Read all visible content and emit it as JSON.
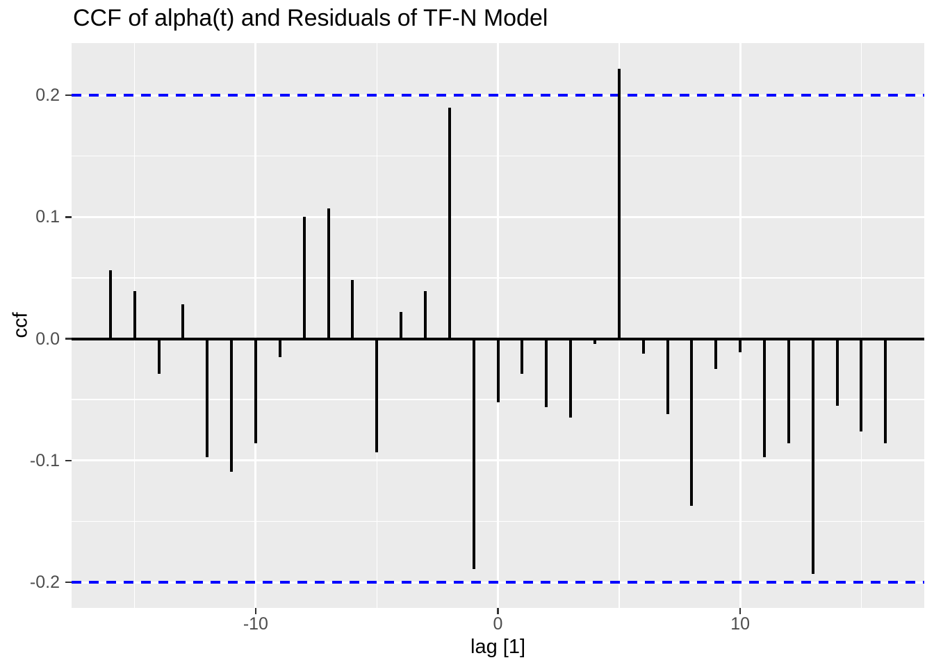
{
  "chart_data": {
    "type": "bar",
    "subtype": "lollipop-ccf",
    "title": "CCF of alpha(t) and Residuals of TF-N Model",
    "xlabel": "lag [1]",
    "ylabel": "ccf",
    "x": [
      -16,
      -15,
      -14,
      -13,
      -12,
      -11,
      -10,
      -9,
      -8,
      -7,
      -6,
      -5,
      -4,
      -3,
      -2,
      -1,
      0,
      1,
      2,
      3,
      4,
      5,
      6,
      7,
      8,
      9,
      10,
      11,
      12,
      13,
      14,
      15,
      16
    ],
    "values": [
      0.056,
      0.039,
      -0.029,
      0.028,
      -0.097,
      -0.109,
      -0.086,
      -0.015,
      0.1,
      0.107,
      0.048,
      -0.093,
      0.022,
      0.039,
      0.19,
      -0.189,
      -0.052,
      -0.029,
      -0.056,
      -0.065,
      -0.004,
      0.222,
      -0.012,
      -0.062,
      -0.137,
      -0.025,
      -0.011,
      -0.097,
      -0.086,
      -0.193,
      -0.055,
      -0.076,
      -0.086
    ],
    "confidence_bounds": [
      -0.2,
      0.2
    ],
    "xlim": [
      -17.6,
      17.6
    ],
    "ylim": [
      -0.2211,
      0.2428
    ],
    "x_ticks": {
      "major": [
        -10,
        0,
        10
      ],
      "minor": [
        -15,
        -5,
        5,
        15
      ],
      "labels": [
        "-10",
        "0",
        "10"
      ]
    },
    "y_ticks": {
      "major": [
        0.2,
        0.1,
        0.0,
        -0.1,
        -0.2
      ],
      "minor": [
        0.15,
        0.05,
        -0.05,
        -0.15
      ],
      "labels": [
        "0.2",
        "0.1",
        "0.0",
        "-0.1",
        "-0.2"
      ]
    },
    "grid": "on",
    "legend_position": "none",
    "colors": {
      "bar": "#000000",
      "zero_line": "#000000",
      "conf_line": "#0000FF",
      "panel_bg": "#EBEBEB",
      "grid": "#FFFFFF",
      "tick_mark": "#333333",
      "tick_text": "#4D4D4D",
      "title_text": "#000000",
      "axis_title_text": "#000000",
      "background": "#FFFFFF"
    }
  }
}
